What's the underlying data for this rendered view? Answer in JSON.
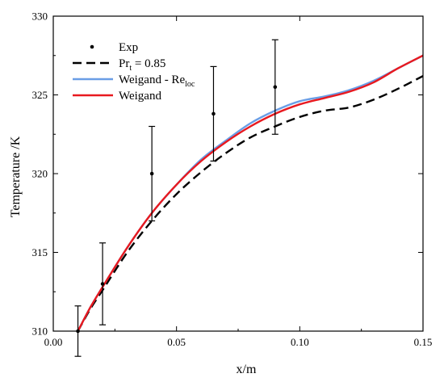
{
  "chart_data": {
    "type": "line",
    "xlabel": "x/m",
    "ylabel": "Temperature /K",
    "xlim": [
      0.0,
      0.15
    ],
    "ylim": [
      310,
      330
    ],
    "x_ticks": [
      0.0,
      0.05,
      0.1,
      0.15
    ],
    "x_tick_labels": [
      "0.00",
      "0.05",
      "0.10",
      "0.15"
    ],
    "y_ticks": [
      310,
      315,
      320,
      325,
      330
    ],
    "y_tick_labels": [
      "310",
      "315",
      "320",
      "325",
      "330"
    ],
    "grid": false,
    "legend_position": "top-left",
    "series": [
      {
        "name": "Exp",
        "kind": "scatter-errorbar",
        "color": "#000000",
        "points": [
          {
            "x": 0.01,
            "y": 310.0,
            "err": 1.6
          },
          {
            "x": 0.02,
            "y": 313.0,
            "err": 2.6
          },
          {
            "x": 0.04,
            "y": 320.0,
            "err": 3.0
          },
          {
            "x": 0.065,
            "y": 323.8,
            "err": 3.0
          },
          {
            "x": 0.09,
            "y": 325.5,
            "err": 3.0
          }
        ]
      },
      {
        "name": "Pr",
        "name_sub": "t",
        "name_suffix": " = 0.85",
        "kind": "line",
        "style": "dashed",
        "color": "#000000",
        "x": [
          0.01,
          0.015,
          0.02,
          0.03,
          0.04,
          0.05,
          0.06,
          0.07,
          0.08,
          0.09,
          0.1,
          0.11,
          0.12,
          0.13,
          0.14,
          0.15
        ],
        "y": [
          310.0,
          311.4,
          312.6,
          315.0,
          317.0,
          318.7,
          320.1,
          321.3,
          322.3,
          323.0,
          323.6,
          324.0,
          324.2,
          324.7,
          325.4,
          326.2
        ]
      },
      {
        "name": "Weigand - Re",
        "name_sub": "loc",
        "name_suffix": "",
        "kind": "line",
        "style": "solid",
        "color": "#6a9ee6",
        "x": [
          0.01,
          0.015,
          0.02,
          0.03,
          0.04,
          0.05,
          0.06,
          0.07,
          0.08,
          0.09,
          0.1,
          0.11,
          0.12,
          0.13,
          0.14,
          0.15
        ],
        "y": [
          310.0,
          311.5,
          312.8,
          315.3,
          317.5,
          319.3,
          320.9,
          322.1,
          323.2,
          324.0,
          324.6,
          324.9,
          325.3,
          325.9,
          326.7,
          327.5
        ]
      },
      {
        "name": "Weigand",
        "name_sub": "",
        "name_suffix": "",
        "kind": "line",
        "style": "solid",
        "color": "#e8191f",
        "x": [
          0.01,
          0.015,
          0.02,
          0.03,
          0.04,
          0.05,
          0.06,
          0.07,
          0.08,
          0.09,
          0.1,
          0.11,
          0.12,
          0.13,
          0.14,
          0.15
        ],
        "y": [
          310.0,
          311.5,
          312.8,
          315.3,
          317.5,
          319.3,
          320.8,
          322.0,
          323.0,
          323.8,
          324.4,
          324.8,
          325.2,
          325.8,
          326.7,
          327.5
        ]
      }
    ]
  }
}
